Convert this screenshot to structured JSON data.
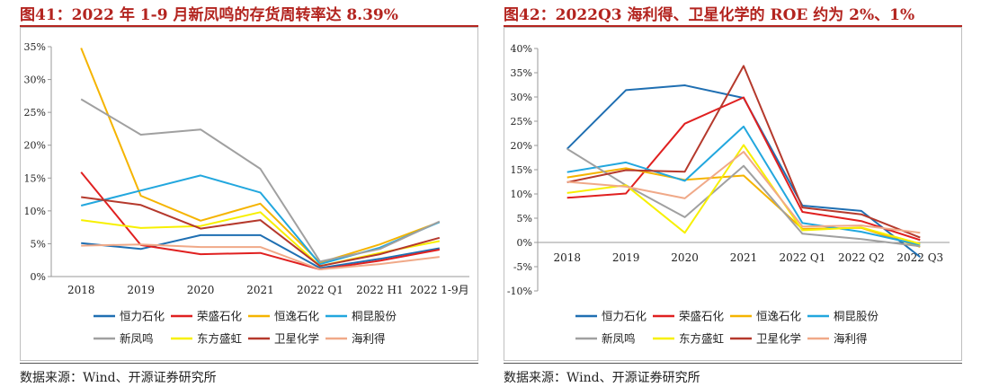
{
  "left_panel": {
    "title": "图41：2022 年 1-9 月新凤鸣的存货周转率达 8.39%",
    "source": "数据来源：Wind、开源证券研究所"
  },
  "right_panel": {
    "title": "图42：2022Q3 海利得、卫星化学的 ROE 约为 2%、1%",
    "source": "数据来源：Wind、开源证券研究所"
  },
  "chart_data": [
    {
      "type": "line",
      "title": "2022 年 1-9 月新凤鸣的存货周转率达 8.39%",
      "categories": [
        "2018",
        "2019",
        "2020",
        "2021",
        "2022 Q1",
        "2022 H1",
        "2022 1-9月"
      ],
      "ylim": [
        0,
        35
      ],
      "yticks": [
        0,
        5,
        10,
        15,
        20,
        25,
        30,
        35
      ],
      "ytick_labels": [
        "0%",
        "5%",
        "10%",
        "15%",
        "20%",
        "25%",
        "30%",
        "35%"
      ],
      "legend_position": "bottom",
      "series": [
        {
          "name": "恒力石化",
          "color": "#1f6fb2",
          "values": [
            5.1,
            4.2,
            6.3,
            6.3,
            1.3,
            2.7,
            4.3
          ]
        },
        {
          "name": "荣盛石化",
          "color": "#e02020",
          "values": [
            15.9,
            4.8,
            3.4,
            3.6,
            1.1,
            2.4,
            4.1
          ]
        },
        {
          "name": "恒逸石化",
          "color": "#f5b400",
          "values": [
            34.8,
            12.3,
            8.5,
            11.1,
            2.1,
            4.9,
            8.3
          ]
        },
        {
          "name": "桐昆股份",
          "color": "#22a7de",
          "values": [
            10.8,
            13.1,
            15.4,
            12.8,
            1.9,
            4.4,
            8.3
          ]
        },
        {
          "name": "新凤鸣",
          "color": "#a0a0a0",
          "values": [
            27.0,
            21.6,
            22.4,
            16.4,
            2.3,
            4.2,
            8.39
          ]
        },
        {
          "name": "东方盛虹",
          "color": "#f7f000",
          "values": [
            8.6,
            7.4,
            7.7,
            9.8,
            1.6,
            3.6,
            5.4
          ]
        },
        {
          "name": "卫星化学",
          "color": "#b5392c",
          "values": [
            12.1,
            10.9,
            7.3,
            8.6,
            1.6,
            3.4,
            5.9
          ]
        },
        {
          "name": "海利得",
          "color": "#f0a988",
          "values": [
            4.7,
            4.9,
            4.5,
            4.5,
            1.1,
            1.9,
            3.0
          ]
        }
      ]
    },
    {
      "type": "line",
      "title": "2022Q3 海利得、卫星化学的 ROE 约为 2%、1%",
      "categories": [
        "2018",
        "2019",
        "2020",
        "2021",
        "2022 Q1",
        "2022 Q2",
        "2022 Q3"
      ],
      "ylim": [
        -10,
        40
      ],
      "yticks": [
        -10,
        -5,
        0,
        5,
        10,
        15,
        20,
        25,
        30,
        35,
        40
      ],
      "ytick_labels": [
        "-10%",
        "-5%",
        "0%",
        "5%",
        "10%",
        "15%",
        "20%",
        "25%",
        "30%",
        "35%",
        "40%"
      ],
      "legend_position": "bottom",
      "series": [
        {
          "name": "恒力石化",
          "color": "#1f6fb2",
          "values": [
            19.3,
            31.4,
            32.4,
            29.8,
            7.6,
            6.5,
            -3.0
          ]
        },
        {
          "name": "荣盛石化",
          "color": "#e02020",
          "values": [
            9.2,
            10.1,
            24.5,
            29.9,
            6.3,
            4.4,
            0.5
          ]
        },
        {
          "name": "恒逸石化",
          "color": "#f5b400",
          "values": [
            13.4,
            15.3,
            12.9,
            13.8,
            2.8,
            3.0,
            -0.9
          ]
        },
        {
          "name": "桐昆股份",
          "color": "#22a7de",
          "values": [
            14.5,
            16.5,
            12.7,
            23.9,
            4.0,
            2.2,
            -0.5
          ]
        },
        {
          "name": "新凤鸣",
          "color": "#a0a0a0",
          "values": [
            19.3,
            11.8,
            5.2,
            15.8,
            1.8,
            0.7,
            -0.8
          ]
        },
        {
          "name": "东方盛虹",
          "color": "#f7f000",
          "values": [
            10.2,
            11.8,
            2.0,
            20.1,
            2.5,
            3.1,
            -0.3
          ]
        },
        {
          "name": "卫星化学",
          "color": "#b5392c",
          "values": [
            12.4,
            14.9,
            14.6,
            36.4,
            7.2,
            5.8,
            1.0
          ]
        },
        {
          "name": "海利得",
          "color": "#f0a988",
          "values": [
            12.5,
            11.5,
            9.1,
            18.7,
            3.3,
            3.5,
            2.0
          ]
        }
      ]
    }
  ]
}
